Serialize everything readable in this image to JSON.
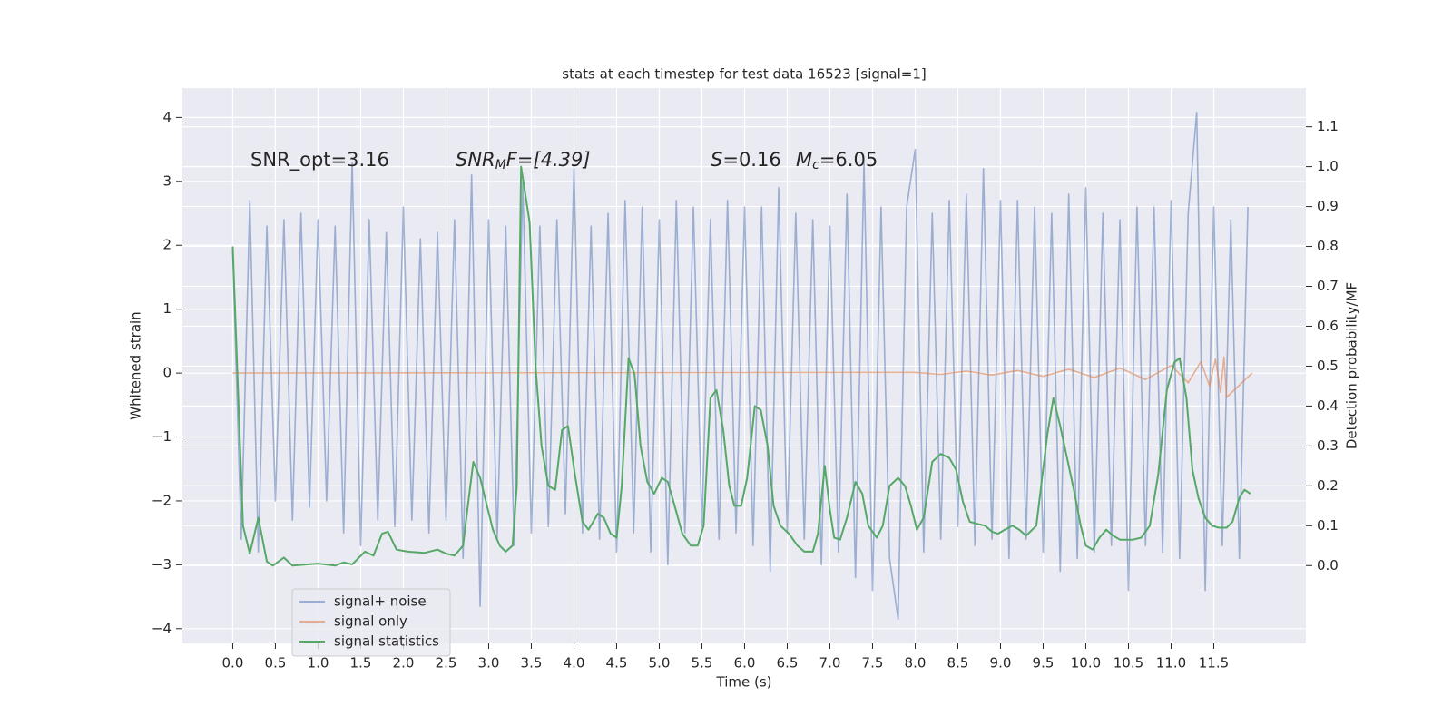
{
  "chart_data": {
    "type": "line",
    "title": "stats at each timestep for test data 16523 [signal=1]",
    "x_label": "Time (s)",
    "y_label": "Whitened strain",
    "y2_label": "Detection probability/MF",
    "annotations": {
      "snr_opt": "SNR_opt=3.16",
      "snr_mf": [
        "SNR",
        "M",
        "F=[4.39]"
      ],
      "s": [
        "S",
        "=0.16"
      ],
      "mc": [
        "M",
        "c",
        "=6.05"
      ]
    },
    "xlim": [
      -0.59,
      12.58
    ],
    "ylim": [
      -4.23,
      4.46
    ],
    "y2lim": [
      -0.195,
      1.197
    ],
    "xticks": [
      {
        "value": 0,
        "label": "0.0"
      },
      {
        "value": 0.5,
        "label": "0.5"
      },
      {
        "value": 1,
        "label": "1.0"
      },
      {
        "value": 1.5,
        "label": "1.5"
      },
      {
        "value": 2,
        "label": "2.0"
      },
      {
        "value": 2.5,
        "label": "2.5"
      },
      {
        "value": 3,
        "label": "3.0"
      },
      {
        "value": 3.5,
        "label": "3.5"
      },
      {
        "value": 4,
        "label": "4.0"
      },
      {
        "value": 4.5,
        "label": "4.5"
      },
      {
        "value": 5,
        "label": "5.0"
      },
      {
        "value": 5.5,
        "label": "5.5"
      },
      {
        "value": 6,
        "label": "6.0"
      },
      {
        "value": 6.5,
        "label": "6.5"
      },
      {
        "value": 7,
        "label": "7.0"
      },
      {
        "value": 7.5,
        "label": "7.5"
      },
      {
        "value": 8,
        "label": "8.0"
      },
      {
        "value": 8.5,
        "label": "8.5"
      },
      {
        "value": 9,
        "label": "9.0"
      },
      {
        "value": 9.5,
        "label": "9.5"
      },
      {
        "value": 10,
        "label": "10.0"
      },
      {
        "value": 10.5,
        "label": "10.5"
      },
      {
        "value": 11,
        "label": "11.0"
      },
      {
        "value": 11.5,
        "label": "11.5"
      }
    ],
    "yticks": [
      {
        "value": -4,
        "label": "−4"
      },
      {
        "value": -3,
        "label": "−3"
      },
      {
        "value": -2,
        "label": "−2"
      },
      {
        "value": -1,
        "label": "−1"
      },
      0,
      1,
      2,
      3,
      4
    ],
    "y2ticks": [
      {
        "value": 0,
        "label": "0.0"
      },
      {
        "value": 0.1,
        "label": "0.1"
      },
      {
        "value": 0.2,
        "label": "0.2"
      },
      {
        "value": 0.3,
        "label": "0.3"
      },
      {
        "value": 0.4,
        "label": "0.4"
      },
      {
        "value": 0.5,
        "label": "0.5"
      },
      {
        "value": 0.6,
        "label": "0.6"
      },
      {
        "value": 0.7,
        "label": "0.7"
      },
      {
        "value": 0.8,
        "label": "0.8"
      },
      {
        "value": 0.9,
        "label": "0.9"
      },
      {
        "value": 1,
        "label": "1.0"
      },
      {
        "value": 1.1,
        "label": "1.1"
      }
    ],
    "grid": true,
    "legend": "lower left",
    "series": [
      {
        "name": "signal+ noise",
        "color": "#4c72b0",
        "opacity": 0.5,
        "x": [
          0.0,
          0.1,
          0.2,
          0.3,
          0.4,
          0.5,
          0.6,
          0.7,
          0.8,
          0.9,
          1.0,
          1.1,
          1.2,
          1.3,
          1.4,
          1.5,
          1.6,
          1.7,
          1.8,
          1.9,
          2.0,
          2.1,
          2.2,
          2.3,
          2.4,
          2.5,
          2.6,
          2.7,
          2.8,
          2.9,
          3.0,
          3.1,
          3.2,
          3.3,
          3.4,
          3.5,
          3.6,
          3.7,
          3.8,
          3.9,
          4.0,
          4.1,
          4.2,
          4.3,
          4.4,
          4.5,
          4.6,
          4.7,
          4.8,
          4.9,
          5.0,
          5.1,
          5.2,
          5.3,
          5.4,
          5.5,
          5.6,
          5.7,
          5.8,
          5.9,
          6.0,
          6.1,
          6.2,
          6.3,
          6.4,
          6.5,
          6.6,
          6.7,
          6.8,
          6.9,
          7.0,
          7.1,
          7.2,
          7.3,
          7.4,
          7.5,
          7.6,
          7.7,
          7.8,
          7.9,
          8.0,
          8.1,
          8.2,
          8.3,
          8.4,
          8.5,
          8.6,
          8.7,
          8.8,
          8.9,
          9.0,
          9.1,
          9.2,
          9.3,
          9.4,
          9.5,
          9.6,
          9.7,
          9.8,
          9.9,
          10.0,
          10.1,
          10.2,
          10.3,
          10.4,
          10.5,
          10.6,
          10.7,
          10.8,
          10.9,
          11.0,
          11.1,
          11.2,
          11.3,
          11.4,
          11.5,
          11.6,
          11.7,
          11.8,
          11.9
        ],
        "values": [
          1.9,
          -2.6,
          2.7,
          -2.8,
          2.3,
          -2.0,
          2.4,
          -2.3,
          2.5,
          -2.1,
          2.4,
          -2.0,
          2.3,
          -2.5,
          3.3,
          -2.7,
          2.4,
          -2.3,
          2.2,
          -2.4,
          2.6,
          -2.3,
          2.1,
          -2.5,
          2.2,
          -2.3,
          2.4,
          -2.9,
          3.1,
          -3.65,
          2.4,
          -2.6,
          2.3,
          -2.7,
          3.0,
          -2.5,
          2.3,
          -2.4,
          2.4,
          -2.2,
          3.2,
          -2.5,
          2.3,
          -2.6,
          2.5,
          -2.8,
          2.7,
          -2.5,
          2.6,
          -2.8,
          2.4,
          -3.0,
          2.7,
          -2.5,
          2.6,
          -2.4,
          2.4,
          -2.6,
          2.7,
          -2.5,
          2.6,
          -2.7,
          2.6,
          -3.1,
          2.9,
          -2.5,
          2.5,
          -2.6,
          2.4,
          -3.0,
          2.3,
          -2.8,
          2.8,
          -3.2,
          3.3,
          -3.4,
          2.6,
          -2.9,
          -3.85,
          2.6,
          3.5,
          -2.8,
          2.5,
          -2.6,
          2.7,
          -2.4,
          2.8,
          -2.7,
          3.2,
          -2.6,
          2.7,
          -2.9,
          2.7,
          -2.6,
          2.6,
          -2.8,
          2.5,
          -3.1,
          2.8,
          -2.9,
          2.9,
          -2.8,
          2.5,
          -2.7,
          2.4,
          -3.4,
          2.6,
          -2.7,
          2.6,
          -2.8,
          2.7,
          -2.9,
          2.5,
          4.08,
          -3.4,
          2.6,
          -2.7,
          2.4,
          -2.9,
          2.6
        ]
      },
      {
        "name": "signal only",
        "color": "#dd8452",
        "opacity": 0.6,
        "x": [
          0.0,
          8.0,
          8.3,
          8.6,
          8.9,
          9.2,
          9.5,
          9.8,
          10.1,
          10.4,
          10.7,
          11.0,
          11.2,
          11.35,
          11.45,
          11.52,
          11.58,
          11.62,
          11.65,
          11.95
        ],
        "values": [
          0,
          0.01,
          -0.02,
          0.03,
          -0.03,
          0.04,
          -0.05,
          0.06,
          -0.07,
          0.08,
          -0.1,
          0.12,
          -0.15,
          0.18,
          -0.2,
          0.22,
          -0.3,
          0.25,
          -0.38,
          0
        ]
      },
      {
        "name": "signal statistics",
        "color": "#55a868",
        "opacity": 1,
        "axis": "y2",
        "x": [
          0.0,
          0.12,
          0.2,
          0.3,
          0.4,
          0.47,
          0.6,
          0.7,
          1.0,
          1.2,
          1.3,
          1.4,
          1.55,
          1.65,
          1.75,
          1.82,
          1.92,
          2.05,
          2.25,
          2.4,
          2.5,
          2.6,
          2.7,
          2.75,
          2.82,
          2.9,
          2.98,
          3.05,
          3.13,
          3.2,
          3.28,
          3.33,
          3.38,
          3.48,
          3.55,
          3.62,
          3.7,
          3.78,
          3.86,
          3.93,
          4.01,
          4.1,
          4.17,
          4.28,
          4.35,
          4.43,
          4.5,
          4.56,
          4.64,
          4.71,
          4.78,
          4.86,
          4.94,
          5.03,
          5.1,
          5.18,
          5.27,
          5.37,
          5.45,
          5.52,
          5.6,
          5.67,
          5.75,
          5.82,
          5.88,
          5.96,
          6.03,
          6.12,
          6.19,
          6.27,
          6.34,
          6.42,
          6.52,
          6.62,
          6.7,
          6.8,
          6.86,
          6.94,
          7.0,
          7.05,
          7.12,
          7.2,
          7.3,
          7.38,
          7.45,
          7.55,
          7.62,
          7.7,
          7.8,
          7.88,
          7.95,
          8.02,
          8.1,
          8.2,
          8.3,
          8.4,
          8.48,
          8.56,
          8.64,
          8.72,
          8.82,
          8.9,
          8.97,
          9.05,
          9.14,
          9.22,
          9.3,
          9.42,
          9.55,
          9.62,
          9.7,
          9.78,
          9.86,
          9.94,
          10.0,
          10.08,
          10.16,
          10.24,
          10.32,
          10.4,
          10.55,
          10.65,
          10.75,
          10.85,
          10.95,
          11.04,
          11.1,
          11.18,
          11.25,
          11.32,
          11.4,
          11.48,
          11.56,
          11.65,
          11.72,
          11.8,
          11.86,
          11.93
        ],
        "values": [
          0.8,
          0.1,
          0.03,
          0.12,
          0.01,
          0.0,
          0.02,
          0.0,
          0.005,
          0.0,
          0.008,
          0.003,
          0.035,
          0.025,
          0.08,
          0.085,
          0.04,
          0.035,
          0.032,
          0.04,
          0.03,
          0.025,
          0.05,
          0.14,
          0.26,
          0.22,
          0.15,
          0.09,
          0.05,
          0.035,
          0.05,
          0.2,
          1.0,
          0.86,
          0.5,
          0.3,
          0.2,
          0.19,
          0.34,
          0.35,
          0.23,
          0.11,
          0.09,
          0.13,
          0.12,
          0.08,
          0.07,
          0.2,
          0.52,
          0.48,
          0.3,
          0.21,
          0.18,
          0.22,
          0.21,
          0.15,
          0.08,
          0.05,
          0.05,
          0.1,
          0.42,
          0.44,
          0.34,
          0.2,
          0.15,
          0.15,
          0.22,
          0.4,
          0.39,
          0.3,
          0.15,
          0.1,
          0.08,
          0.05,
          0.035,
          0.035,
          0.08,
          0.25,
          0.14,
          0.07,
          0.065,
          0.12,
          0.21,
          0.18,
          0.1,
          0.07,
          0.1,
          0.2,
          0.22,
          0.2,
          0.15,
          0.09,
          0.12,
          0.26,
          0.28,
          0.27,
          0.24,
          0.16,
          0.11,
          0.105,
          0.1,
          0.085,
          0.08,
          0.09,
          0.1,
          0.09,
          0.075,
          0.1,
          0.33,
          0.42,
          0.35,
          0.27,
          0.19,
          0.1,
          0.05,
          0.04,
          0.07,
          0.09,
          0.075,
          0.065,
          0.065,
          0.07,
          0.1,
          0.23,
          0.44,
          0.51,
          0.52,
          0.42,
          0.24,
          0.17,
          0.12,
          0.1,
          0.095,
          0.095,
          0.11,
          0.17,
          0.19,
          0.18
        ]
      }
    ]
  }
}
